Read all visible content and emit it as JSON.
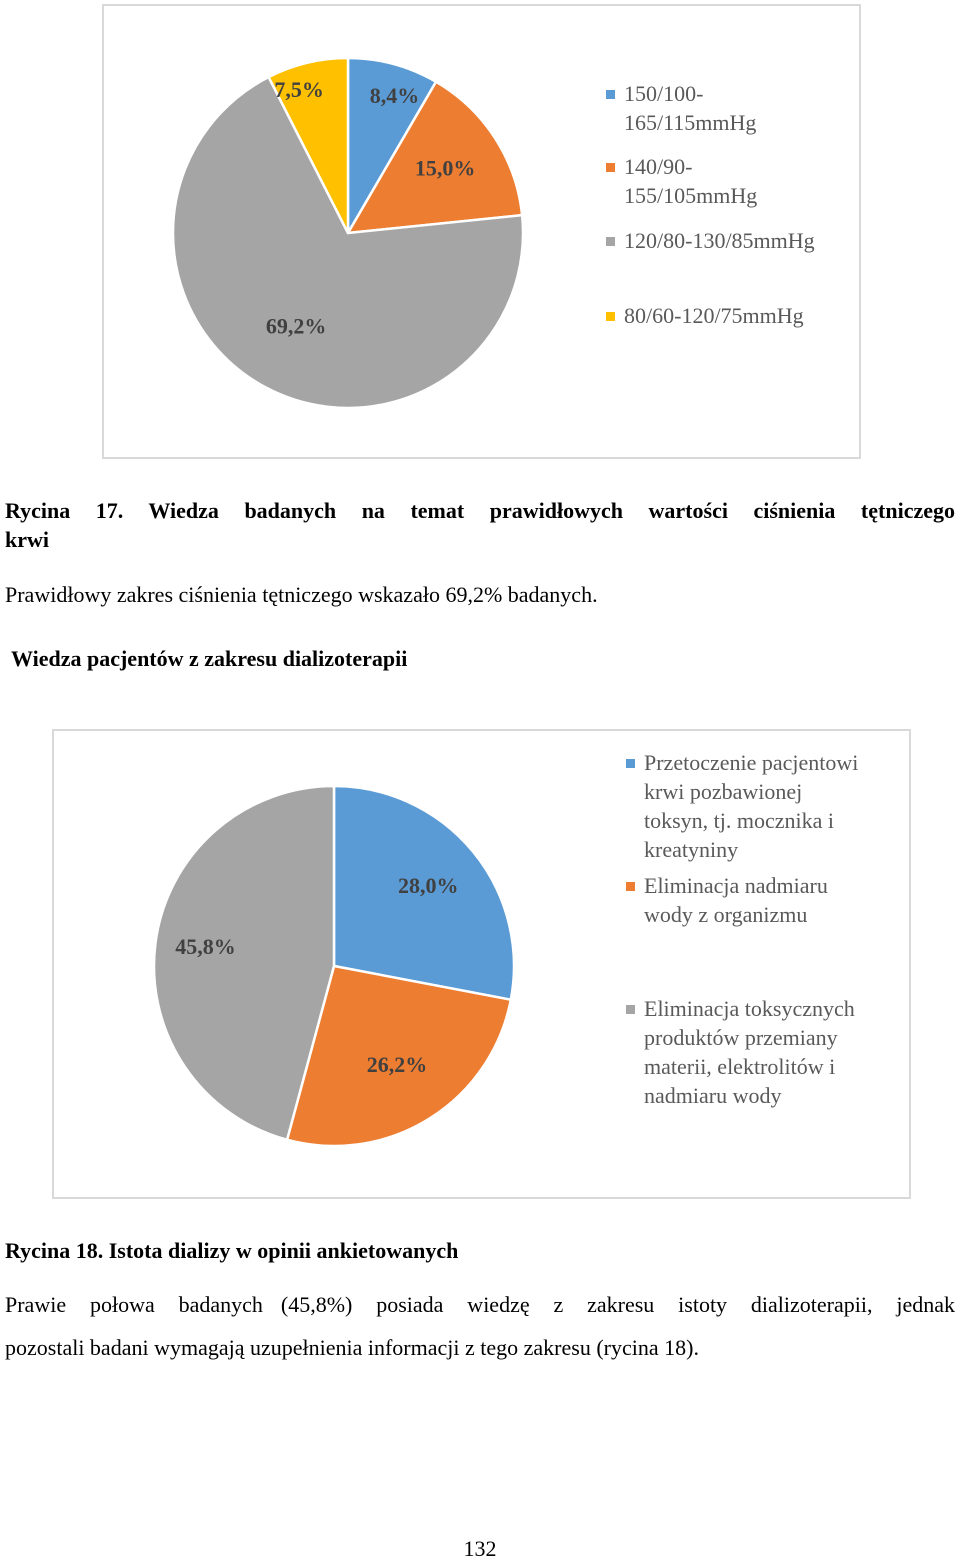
{
  "chart_data": [
    {
      "type": "pie",
      "categories": [
        "150/100-165/115mmHg",
        "140/90-155/105mmHg",
        "120/80-130/85mmHg",
        "80/60-120/75mmHg"
      ],
      "values": [
        8.4,
        15.0,
        69.2,
        7.5
      ],
      "labels": [
        "8,4%",
        "15,0%",
        "69,2%",
        "7,5%"
      ],
      "legend": [
        {
          "name": "150/100-165/115mmHg",
          "lines": [
            "150/100-",
            "165/115mmHg"
          ],
          "color": "#5b9bd5"
        },
        {
          "name": "140/90-155/105mmHg",
          "lines": [
            "140/90-",
            "155/105mmHg"
          ],
          "color": "#ed7d31"
        },
        {
          "name": "120/80-130/85mmHg",
          "lines": [
            "120/80-130/85mmHg"
          ],
          "color": "#a5a5a5"
        },
        {
          "name": "80/60-120/75mmHg",
          "lines": [
            "80/60-120/75mmHg"
          ],
          "color": "#ffc000"
        }
      ],
      "legend_position": "right",
      "title": ""
    },
    {
      "type": "pie",
      "categories": [
        "Przetoczenie pacjentowi krwi pozbawionej toksyn, tj. mocznika i kreatyniny",
        "Eliminacja nadmiaru wody z organizmu",
        "Eliminacja toksycznych produktów przemiany materii, elektrolitów i nadmiaru wody"
      ],
      "values": [
        28.0,
        26.2,
        45.8
      ],
      "labels": [
        "28,0%",
        "26,2%",
        "45,8%"
      ],
      "legend": [
        {
          "name": "Przetoczenie pacjentowi krwi pozbawionej toksyn, tj. mocznika i kreatyniny",
          "lines": [
            "Przetoczenie pacjentowi",
            "krwi pozbawionej",
            "toksyn, tj. mocznika i",
            "kreatyniny"
          ],
          "color": "#5b9bd5"
        },
        {
          "name": "Eliminacja nadmiaru wody z organizmu",
          "lines": [
            "Eliminacja nadmiaru",
            "wody z organizmu"
          ],
          "color": "#ed7d31"
        },
        {
          "name": "Eliminacja toksycznych produktów przemiany materii, elektrolitów i nadmiaru wody",
          "lines": [
            "Eliminacja toksycznych",
            "produktów przemiany",
            "materii, elektrolitów i",
            "nadmiaru wody"
          ],
          "color": "#a5a5a5"
        }
      ],
      "legend_position": "right",
      "title": ""
    }
  ],
  "caption17": {
    "line1": "Rycina 17. Wiedza badanych na temat prawidłowych wartości ciśnienia tętniczego",
    "line2": "krwi"
  },
  "paragraph17": "Prawidłowy zakres ciśnienia tętniczego wskazało 69,2% badanych.",
  "section_heading": "Wiedza pacjentów z zakresu dializoterapii",
  "caption18": "Rycina 18. Istota dializy w opinii ankietowanych",
  "paragraph18": {
    "line1_start": "Prawie połowa badanych",
    "line1_end": "(45,8%) posiada wiedzę z zakresu istoty dializoterapii, jednak",
    "line2": "pozostali badani wymagają uzupełnienia informacji z tego zakresu (rycina 18)."
  },
  "page_number": "132"
}
